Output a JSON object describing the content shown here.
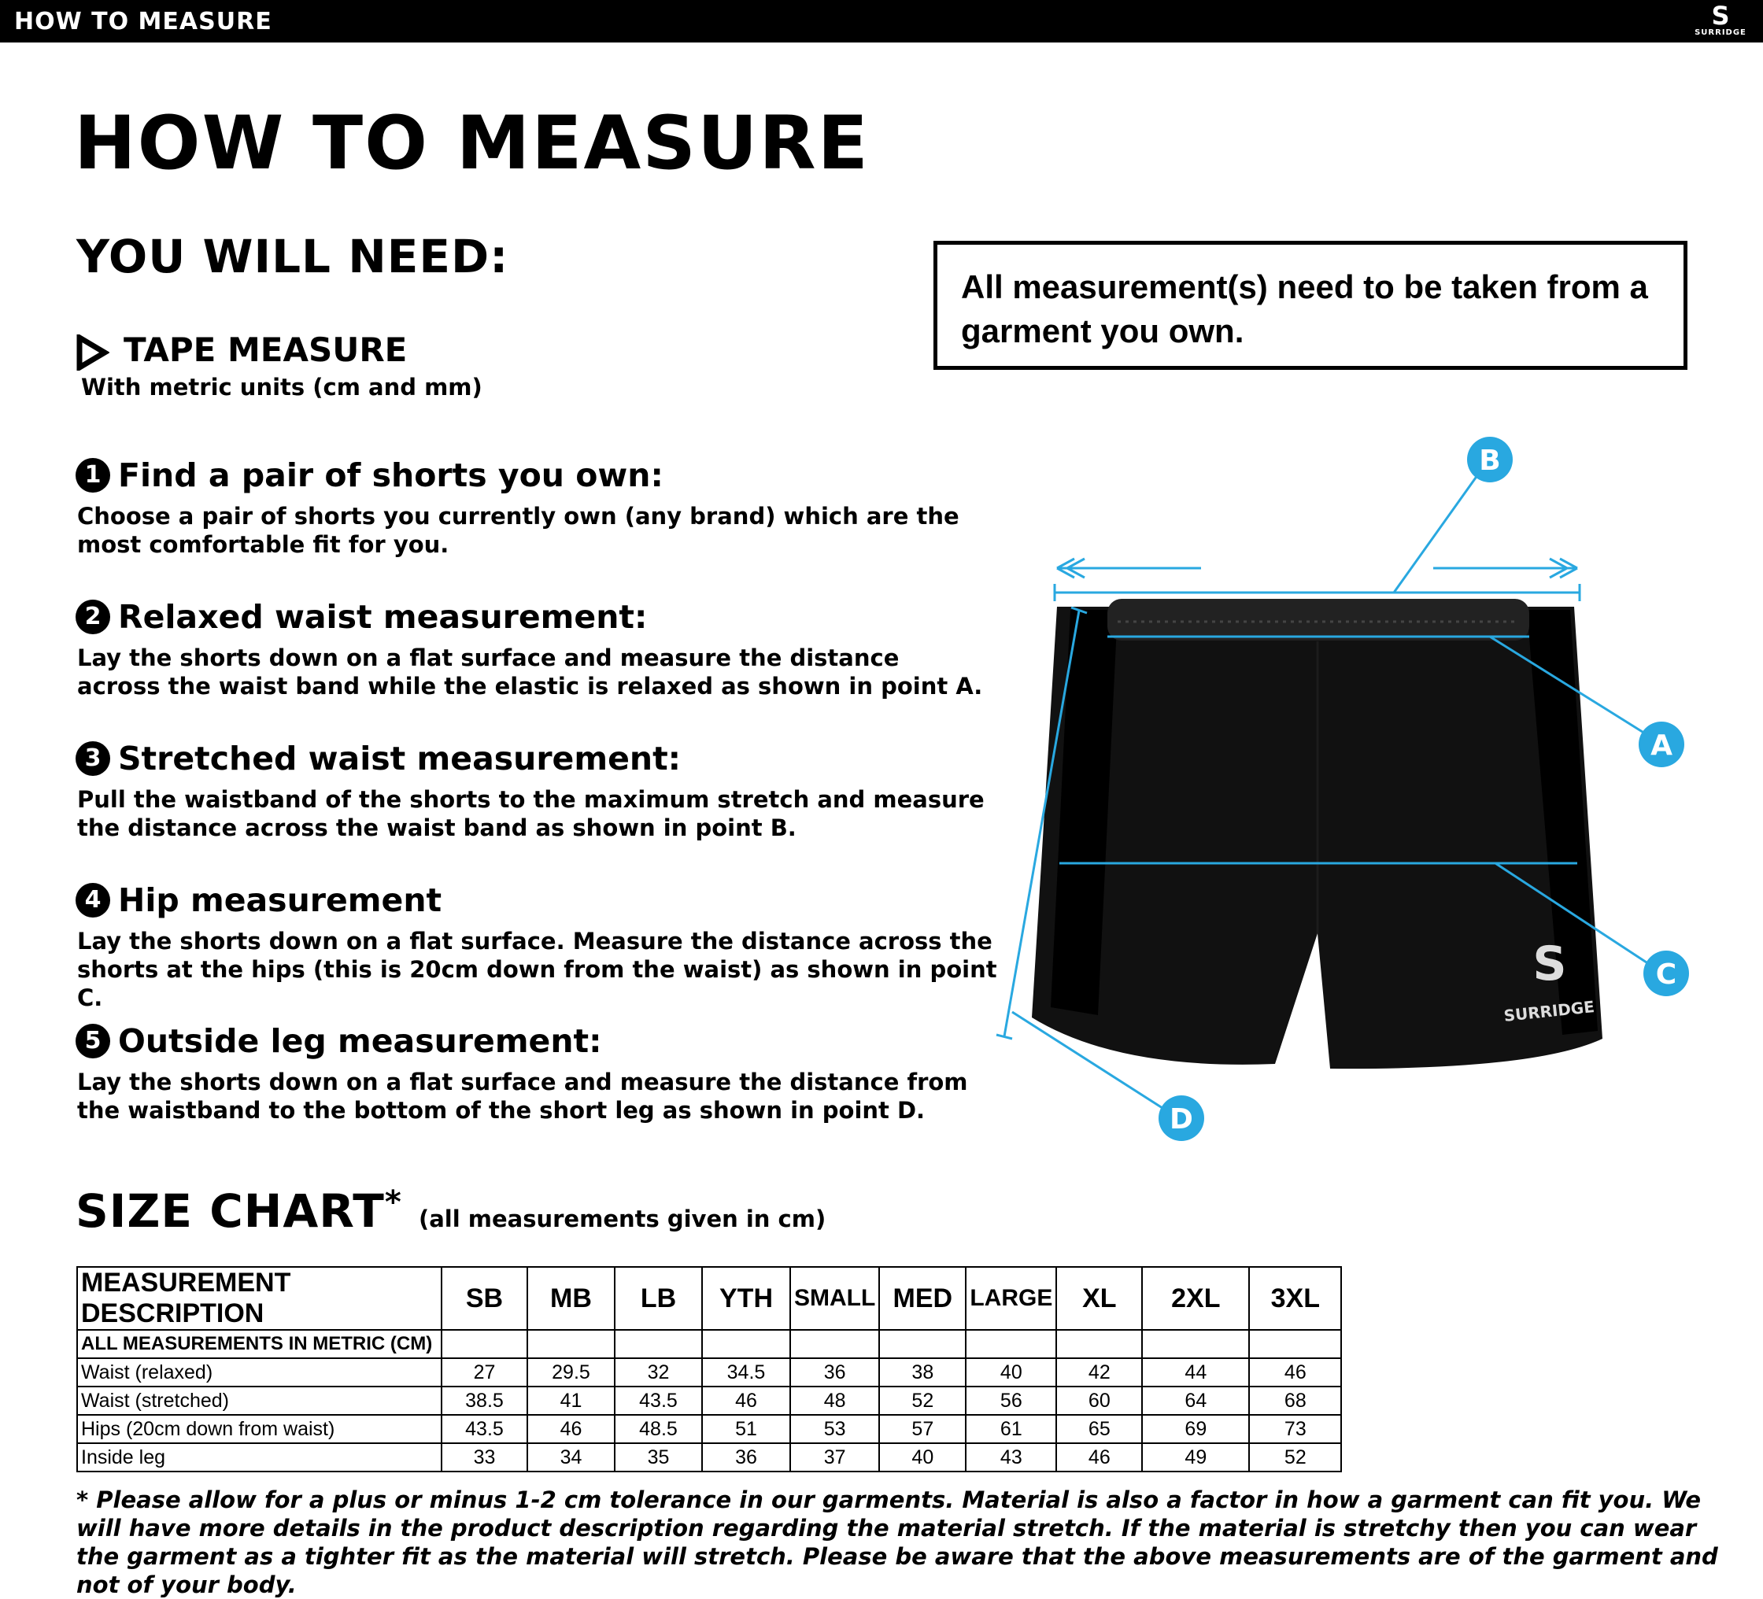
{
  "topbar": {
    "title": "HOW TO MEASURE",
    "logo_text": "SURRIDGE"
  },
  "page_title": "HOW TO MEASURE",
  "you_will_need": "YOU WILL NEED:",
  "notice": "All measurement(s) need to be taken from a garment you own.",
  "tape": {
    "label": "TAPE MEASURE",
    "sub": "With metric units (cm and mm)",
    "icon": "play-triangle-icon"
  },
  "steps": [
    {
      "num": "1",
      "heading": "Find a pair of shorts you own:",
      "body": "Choose a pair of shorts you currently own (any brand) which are the most comfortable fit for you."
    },
    {
      "num": "2",
      "heading": "Relaxed waist measurement:",
      "body": "Lay the shorts down on a flat surface and measure the distance across the waist band while the elastic is relaxed as shown in point A."
    },
    {
      "num": "3",
      "heading": "Stretched waist measurement:",
      "body": "Pull the waistband of the shorts to the maximum stretch and measure the distance across the waist band as shown in point B."
    },
    {
      "num": "4",
      "heading": "Hip measurement",
      "body": "Lay the shorts down on a flat surface. Measure the distance across the shorts at the hips (this is 20cm down from the waist)  as shown in point C."
    },
    {
      "num": "5",
      "heading": "Outside leg measurement:",
      "body": "Lay the shorts down on a flat surface and measure the distance from the waistband to the bottom of the short leg as shown in point D."
    }
  ],
  "diagram": {
    "points": [
      "A",
      "B",
      "C",
      "D"
    ],
    "garment_logo": "SURRIDGE",
    "accent": "#29a8e0"
  },
  "size_chart": {
    "title": "SIZE CHART",
    "star": "*",
    "note": "(all measurements given in cm)",
    "headers": [
      "MEASUREMENT DESCRIPTION",
      "SB",
      "MB",
      "LB",
      "YTH",
      "SMALL",
      "MED",
      "LARGE",
      "XL",
      "2XL",
      "3XL"
    ],
    "subheader": "ALL MEASUREMENTS IN METRIC (CM)",
    "rows": [
      {
        "label": "Waist (relaxed)",
        "values": [
          "27",
          "29.5",
          "32",
          "34.5",
          "36",
          "38",
          "40",
          "42",
          "44",
          "46"
        ]
      },
      {
        "label": "Waist (stretched)",
        "values": [
          "38.5",
          "41",
          "43.5",
          "46",
          "48",
          "52",
          "56",
          "60",
          "64",
          "68"
        ]
      },
      {
        "label": "Hips (20cm down from waist)",
        "values": [
          "43.5",
          "46",
          "48.5",
          "51",
          "53",
          "57",
          "61",
          "65",
          "69",
          "73"
        ]
      },
      {
        "label": "Inside leg",
        "values": [
          "33",
          "34",
          "35",
          "36",
          "37",
          "40",
          "43",
          "46",
          "49",
          "52"
        ]
      }
    ]
  },
  "footnote": "* Please allow for a plus or minus 1-2 cm tolerance in our garments. Material is also a factor in how a garment can fit you. We will have more details in the product description regarding the material stretch.  If the material is stretchy then you can wear the garment as a tighter fit as the material will stretch.  Please be aware that the above measurements are of the garment and not of your body."
}
